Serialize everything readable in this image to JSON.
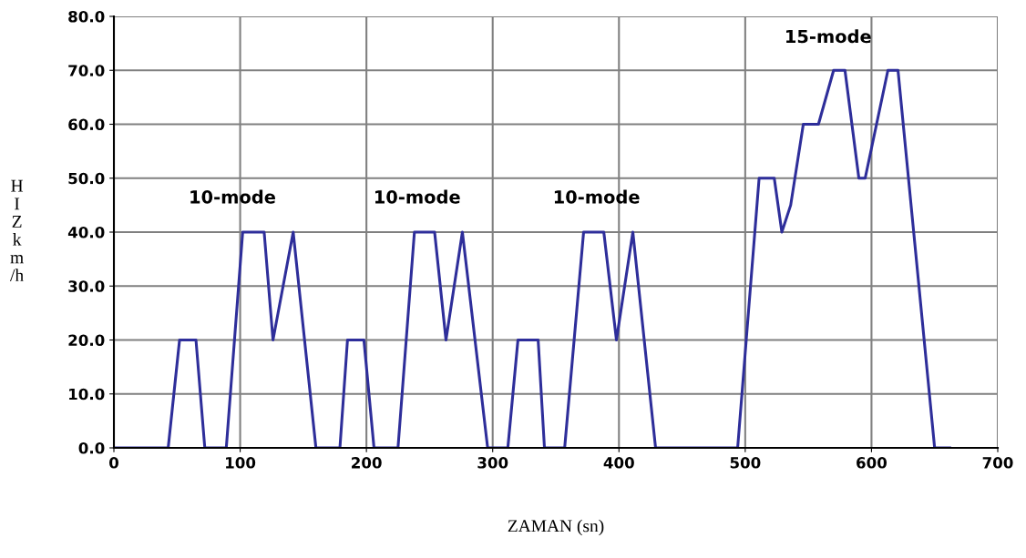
{
  "chart_data": {
    "type": "line",
    "xlabel": "ZAMAN (sn)",
    "ylabel": "H\nI\nZ\nk\nm\n/h",
    "series": [
      {
        "color": "#2e2e9a",
        "x": [
          0,
          43,
          52,
          65,
          72,
          89,
          102,
          119,
          126,
          142,
          160,
          179,
          185,
          198,
          206,
          225,
          238,
          254,
          263,
          276,
          296,
          312,
          320,
          336,
          341,
          357,
          372,
          388,
          398,
          411,
          429,
          494,
          511,
          523,
          529,
          536,
          546,
          558,
          570,
          579,
          590,
          595,
          613,
          621,
          650,
          662
        ],
        "values": [
          0,
          0,
          20,
          20,
          0,
          0,
          40,
          40,
          20,
          40,
          0,
          0,
          20,
          20,
          0,
          0,
          40,
          40,
          20,
          40,
          0,
          0,
          20,
          20,
          0,
          0,
          40,
          40,
          20,
          40,
          0,
          0,
          50,
          50,
          40,
          45,
          60,
          60,
          70,
          70,
          50,
          50,
          70,
          70,
          0,
          0
        ]
      }
    ],
    "annotations": [
      "10-mode",
      "10-mode",
      "10-mode",
      "15-mode"
    ],
    "xlim": [
      0,
      700
    ],
    "xticks": [
      0,
      100,
      200,
      300,
      400,
      500,
      600,
      700
    ],
    "ylim": [
      0,
      80
    ],
    "yticks": [
      {
        "value": 0,
        "label": "0.0"
      },
      {
        "value": 10,
        "label": "10.0"
      },
      {
        "value": 20,
        "label": "20.0"
      },
      {
        "value": 30,
        "label": "30.0"
      },
      {
        "value": 40,
        "label": "40.0"
      },
      {
        "value": 50,
        "label": "50.0"
      },
      {
        "value": 60,
        "label": "60.0"
      },
      {
        "value": 70,
        "label": "70.0"
      },
      {
        "value": 80,
        "label": "80.0"
      }
    ],
    "grid": true
  }
}
